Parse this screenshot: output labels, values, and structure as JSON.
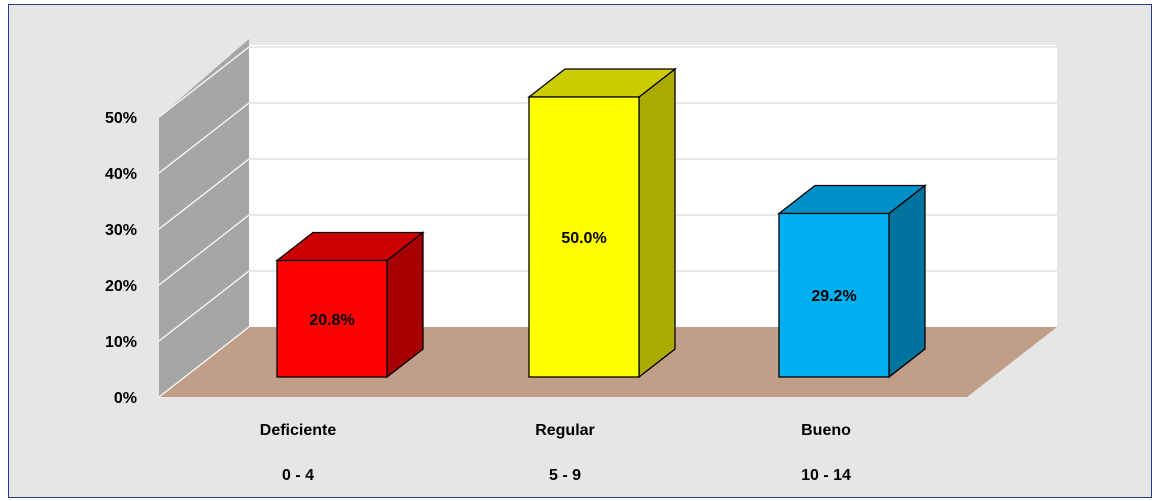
{
  "chart_data": {
    "type": "bar",
    "categories": [
      "Deficiente",
      "Regular",
      "Bueno"
    ],
    "ranges": [
      "0 - 4",
      "5 - 9",
      "10 - 14"
    ],
    "values": [
      20.8,
      50.0,
      29.2
    ],
    "data_labels": [
      "20.8%",
      "50.0%",
      "29.2%"
    ],
    "ylim": [
      0,
      50
    ],
    "yticks": [
      "0%",
      "10%",
      "20%",
      "30%",
      "40%",
      "50%"
    ],
    "grid": true,
    "three_d": true,
    "legend": "none",
    "colors": {
      "bars": [
        {
          "front": "#ff0000",
          "top": "#cc0000",
          "side": "#a80000"
        },
        {
          "front": "#ffff00",
          "top": "#cccc00",
          "side": "#aaaa00"
        },
        {
          "front": "#00b0f0",
          "top": "#0090c8",
          "side": "#00739e"
        }
      ],
      "floor": "#c19e88",
      "left_wall": "#a6a6a6",
      "back_wall": "#ffffff",
      "frame_background": "#e6e6e6",
      "frame_border": "#2a3f8a"
    }
  }
}
